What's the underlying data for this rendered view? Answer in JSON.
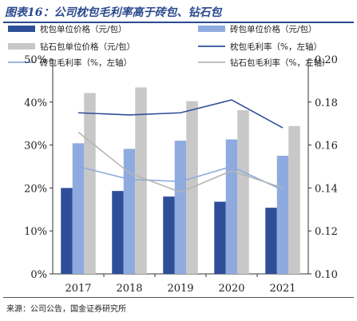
{
  "title": "图表16：公司枕包毛利率高于砖包、钻石包",
  "source": "来源：公司公告，国金证券研究所",
  "chart_data": {
    "type": "bar",
    "categories": [
      "2017",
      "2018",
      "2019",
      "2020",
      "2021"
    ],
    "series": [
      {
        "name": "枕包单位价格（元/包）",
        "type": "bar",
        "axis": "left",
        "color": "#2e4f98",
        "values": [
          0.2,
          0.193,
          0.18,
          0.168,
          0.154
        ]
      },
      {
        "name": "砖包单位价格（元/包）",
        "type": "bar",
        "axis": "left",
        "color": "#8eaadf",
        "values": [
          0.304,
          0.291,
          0.31,
          0.313,
          0.275
        ]
      },
      {
        "name": "钻石包单位价格（元/包）",
        "type": "bar",
        "axis": "left",
        "color": "#c8c8c8",
        "values": [
          0.421,
          0.434,
          0.402,
          0.381,
          0.344
        ]
      },
      {
        "name": "枕包毛利率（%，左轴）",
        "type": "line",
        "axis": "right",
        "color": "#2e4f98",
        "values": [
          0.175,
          0.174,
          0.175,
          0.181,
          0.168
        ]
      },
      {
        "name": "砖包毛利率（%，左轴）",
        "type": "line",
        "axis": "right",
        "color": "#8eaadf",
        "values": [
          0.15,
          0.144,
          0.143,
          0.15,
          0.139
        ]
      },
      {
        "name": "钻石包毛利率（%，左轴）",
        "type": "line",
        "axis": "right",
        "color": "#b5b5b5",
        "values": [
          0.166,
          0.147,
          0.138,
          0.148,
          0.14
        ]
      }
    ],
    "left_axis": {
      "ylim": [
        0,
        0.5
      ],
      "ticks": [
        "0%",
        "10%",
        "20%",
        "30%",
        "40%",
        "50%"
      ]
    },
    "right_axis": {
      "ylim": [
        0.1,
        0.2
      ],
      "ticks": [
        "0.10",
        "0.12",
        "0.14",
        "0.16",
        "0.18",
        "0.20"
      ]
    },
    "grid": false,
    "legend_position": "top"
  }
}
